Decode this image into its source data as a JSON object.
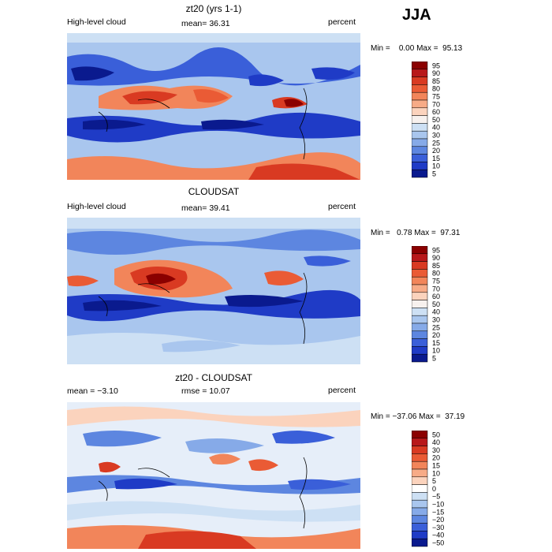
{
  "season": "JJA",
  "panels": [
    {
      "id": "model",
      "title": "zt20 (yrs 1-1)",
      "left_label": "High-level cloud",
      "center_label": "mean=  36.31",
      "right_label": "percent",
      "stats": "Min =    0.00 Max =  95.13",
      "colorbar_levels": [
        "95",
        "90",
        "85",
        "80",
        "75",
        "70",
        "60",
        "50",
        "40",
        "30",
        "25",
        "20",
        "15",
        "10",
        "5"
      ]
    },
    {
      "id": "obs",
      "title": "CLOUDSAT",
      "left_label": "High-level cloud",
      "center_label": "mean=  39.41",
      "right_label": "percent",
      "stats": "Min =   0.78 Max =  97.31",
      "colorbar_levels": [
        "95",
        "90",
        "85",
        "80",
        "75",
        "70",
        "60",
        "50",
        "40",
        "30",
        "25",
        "20",
        "15",
        "10",
        "5"
      ]
    },
    {
      "id": "diff",
      "title": "zt20 - CLOUDSAT",
      "left_label": "mean =  −3.10",
      "center_label": "rmse =   10.07",
      "right_label": "percent",
      "stats": "Min = −37.06 Max =  37.19",
      "colorbar_levels": [
        "50",
        "40",
        "30",
        "20",
        "15",
        "10",
        "5",
        "0",
        "−5",
        "−10",
        "−15",
        "−20",
        "−30",
        "−40",
        "−50"
      ]
    }
  ],
  "colors": {
    "abs_scale": [
      "#8b0000",
      "#b8181a",
      "#d93a22",
      "#ea5b35",
      "#f2855a",
      "#f7ab87",
      "#fbd3bd",
      "#f7f1ee",
      "#cde0f4",
      "#a9c6ee",
      "#86aae8",
      "#5d86e0",
      "#3a5fd9",
      "#1f3bc6",
      "#0a1a8e"
    ],
    "diff_scale": [
      "#8b0000",
      "#b8181a",
      "#d93a22",
      "#ea5b35",
      "#f2855a",
      "#f7ab87",
      "#fbd3bd",
      "#ffffff",
      "#cde0f4",
      "#a9c6ee",
      "#86aae8",
      "#5d86e0",
      "#3a5fd9",
      "#1f3bc6",
      "#0a1a8e"
    ],
    "map_base": "#a9c6ee"
  }
}
